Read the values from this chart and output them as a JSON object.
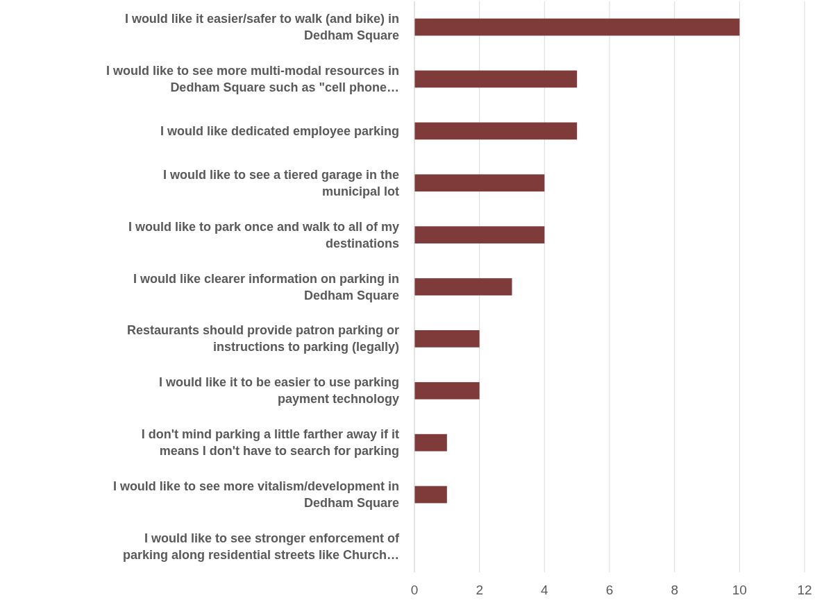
{
  "chart_data": {
    "type": "bar",
    "orientation": "horizontal",
    "categories": [
      "I would like it easier/safer to walk (and bike) in Dedham Square",
      "I would like to see more multi-modal resources in Dedham Square such as \"cell phone…",
      "I would like dedicated employee parking",
      "I would like to see a tiered garage in the municipal lot",
      "I would like to park once and walk to all of my destinations",
      "I would like clearer information on parking in Dedham Square",
      "Restaurants should provide patron parking or instructions to parking (legally)",
      "I would like it to be easier to use parking payment technology",
      "I don't mind parking a little farther away if it means I don't have to search for parking",
      "I would like to see more vitalism/development in Dedham Square",
      "I would like to see stronger enforcement of parking along residential streets like Church…"
    ],
    "values": [
      10,
      5,
      5,
      4,
      4,
      3,
      2,
      2,
      1,
      1,
      0
    ],
    "color": "#7f3a3a",
    "xlim": [
      0,
      12
    ],
    "xticks": [
      0,
      2,
      4,
      6,
      8,
      10,
      12
    ],
    "grid": "x"
  }
}
